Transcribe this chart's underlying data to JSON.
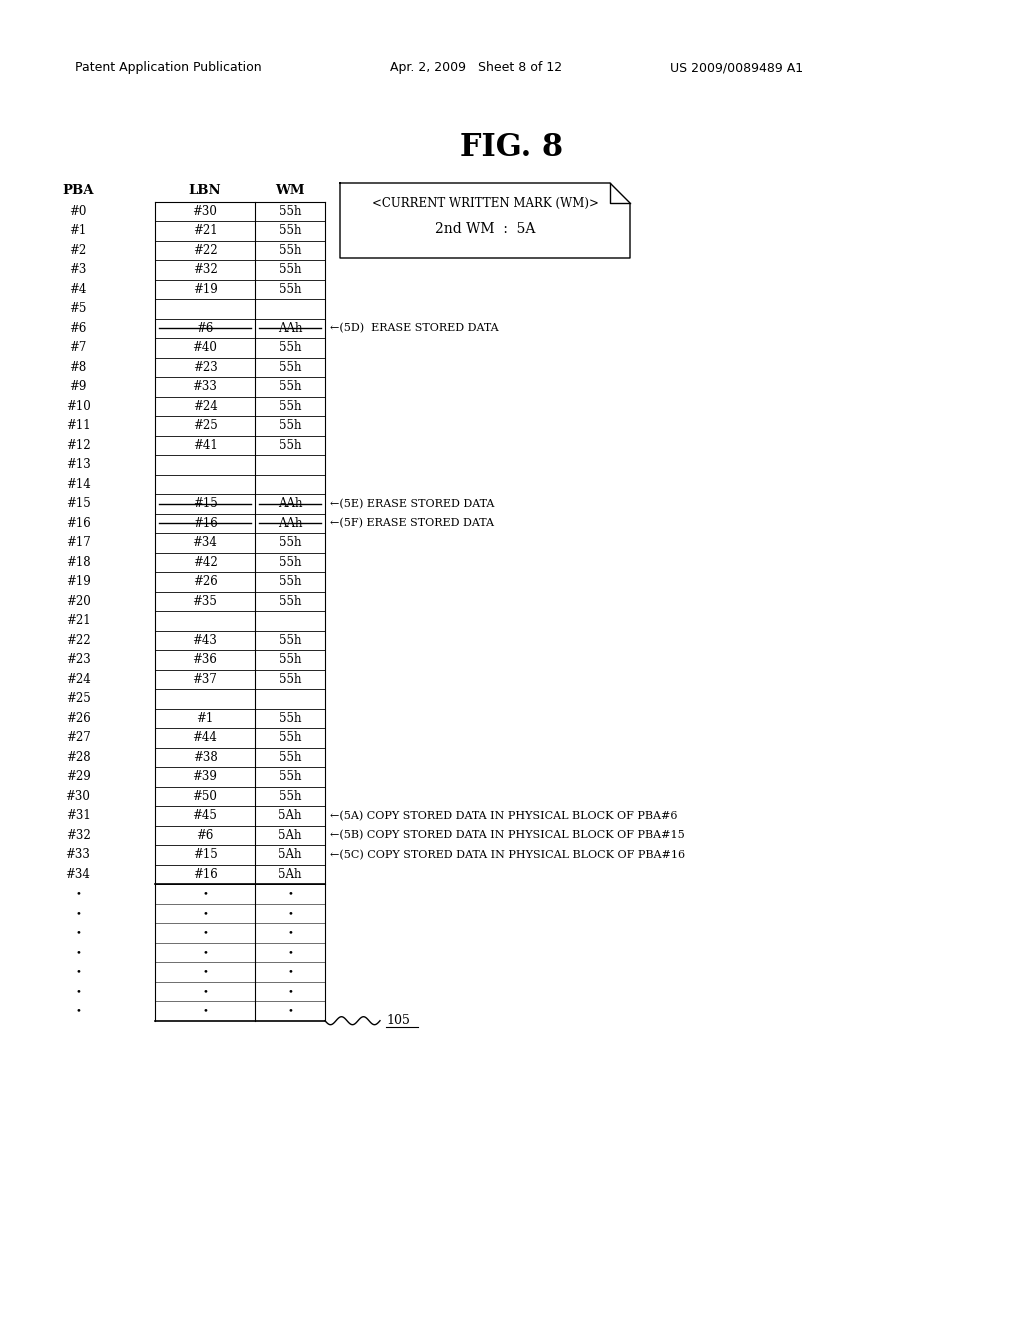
{
  "title": "FIG. 8",
  "header_left": "Patent Application Publication",
  "header_mid": "Apr. 2, 2009   Sheet 8 of 12",
  "header_right": "US 2009/0089489 A1",
  "col_headers": [
    "PBA",
    "LBN",
    "WM"
  ],
  "rows": [
    {
      "pba": "#0",
      "lbn": "#30",
      "wm": "55h",
      "strikethrough": false
    },
    {
      "pba": "#1",
      "lbn": "#21",
      "wm": "55h",
      "strikethrough": false
    },
    {
      "pba": "#2",
      "lbn": "#22",
      "wm": "55h",
      "strikethrough": false
    },
    {
      "pba": "#3",
      "lbn": "#32",
      "wm": "55h",
      "strikethrough": false
    },
    {
      "pba": "#4",
      "lbn": "#19",
      "wm": "55h",
      "strikethrough": false
    },
    {
      "pba": "#5",
      "lbn": "",
      "wm": "",
      "strikethrough": false
    },
    {
      "pba": "#6",
      "lbn": "#6",
      "wm": "AAh",
      "strikethrough": true
    },
    {
      "pba": "#7",
      "lbn": "#40",
      "wm": "55h",
      "strikethrough": false
    },
    {
      "pba": "#8",
      "lbn": "#23",
      "wm": "55h",
      "strikethrough": false
    },
    {
      "pba": "#9",
      "lbn": "#33",
      "wm": "55h",
      "strikethrough": false
    },
    {
      "pba": "#10",
      "lbn": "#24",
      "wm": "55h",
      "strikethrough": false
    },
    {
      "pba": "#11",
      "lbn": "#25",
      "wm": "55h",
      "strikethrough": false
    },
    {
      "pba": "#12",
      "lbn": "#41",
      "wm": "55h",
      "strikethrough": false
    },
    {
      "pba": "#13",
      "lbn": "",
      "wm": "",
      "strikethrough": false
    },
    {
      "pba": "#14",
      "lbn": "",
      "wm": "",
      "strikethrough": false
    },
    {
      "pba": "#15",
      "lbn": "#15",
      "wm": "AAh",
      "strikethrough": true
    },
    {
      "pba": "#16",
      "lbn": "#16",
      "wm": "AAh",
      "strikethrough": true
    },
    {
      "pba": "#17",
      "lbn": "#34",
      "wm": "55h",
      "strikethrough": false
    },
    {
      "pba": "#18",
      "lbn": "#42",
      "wm": "55h",
      "strikethrough": false
    },
    {
      "pba": "#19",
      "lbn": "#26",
      "wm": "55h",
      "strikethrough": false
    },
    {
      "pba": "#20",
      "lbn": "#35",
      "wm": "55h",
      "strikethrough": false
    },
    {
      "pba": "#21",
      "lbn": "",
      "wm": "",
      "strikethrough": false
    },
    {
      "pba": "#22",
      "lbn": "#43",
      "wm": "55h",
      "strikethrough": false
    },
    {
      "pba": "#23",
      "lbn": "#36",
      "wm": "55h",
      "strikethrough": false
    },
    {
      "pba": "#24",
      "lbn": "#37",
      "wm": "55h",
      "strikethrough": false
    },
    {
      "pba": "#25",
      "lbn": "",
      "wm": "",
      "strikethrough": false
    },
    {
      "pba": "#26",
      "lbn": "#1",
      "wm": "55h",
      "strikethrough": false
    },
    {
      "pba": "#27",
      "lbn": "#44",
      "wm": "55h",
      "strikethrough": false
    },
    {
      "pba": "#28",
      "lbn": "#38",
      "wm": "55h",
      "strikethrough": false
    },
    {
      "pba": "#29",
      "lbn": "#39",
      "wm": "55h",
      "strikethrough": false
    },
    {
      "pba": "#30",
      "lbn": "#50",
      "wm": "55h",
      "strikethrough": false
    },
    {
      "pba": "#31",
      "lbn": "#45",
      "wm": "5Ah",
      "strikethrough": false
    },
    {
      "pba": "#32",
      "lbn": "#6",
      "wm": "5Ah",
      "strikethrough": false
    },
    {
      "pba": "#33",
      "lbn": "#15",
      "wm": "5Ah",
      "strikethrough": false
    },
    {
      "pba": "#34",
      "lbn": "#16",
      "wm": "5Ah",
      "strikethrough": false
    }
  ],
  "dot_rows": 7,
  "annotations": [
    {
      "row_idx": 6,
      "text": "←(5D)  ERASE STORED DATA"
    },
    {
      "row_idx": 15,
      "text": "←(5E) ERASE STORED DATA"
    },
    {
      "row_idx": 16,
      "text": "←(5F) ERASE STORED DATA"
    },
    {
      "row_idx": 31,
      "text": "←(5A) COPY STORED DATA IN PHYSICAL BLOCK OF PBA#6"
    },
    {
      "row_idx": 32,
      "text": "←(5B) COPY STORED DATA IN PHYSICAL BLOCK OF PBA#15"
    },
    {
      "row_idx": 33,
      "text": "←(5C) COPY STORED DATA IN PHYSICAL BLOCK OF PBA#16"
    }
  ],
  "note_box": {
    "title": "<CURRENT WRITTEN MARK (WM)>",
    "body": "2nd WM  :  5A"
  },
  "label_105": "105",
  "bg_color": "#ffffff"
}
